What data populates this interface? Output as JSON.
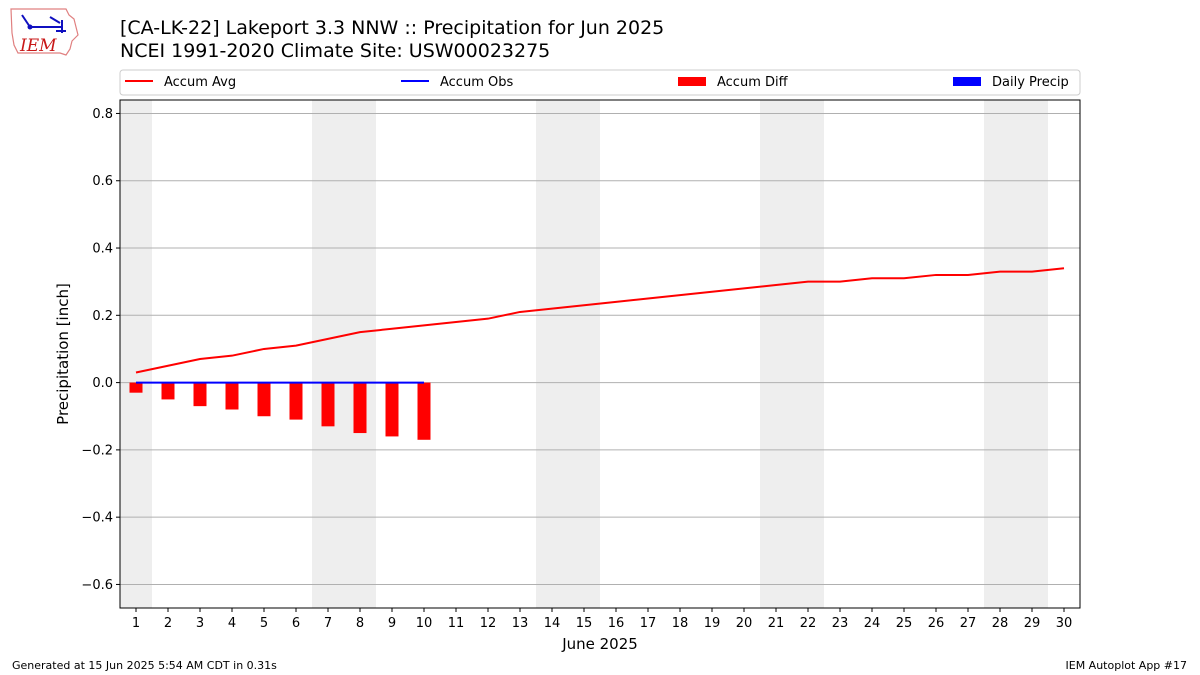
{
  "header": {
    "title_line1": "[CA-LK-22] Lakeport 3.3 NNW :: Precipitation for Jun 2025",
    "title_line2": "NCEI 1991-2020 Climate Site: USW00023275",
    "logo_text": "IEM"
  },
  "footer": {
    "left": "Generated at 15 Jun 2025 5:54 AM CDT in 0.31s",
    "right": "IEM Autoplot App #17"
  },
  "colors": {
    "accum_avg": "#ff0000",
    "accum_obs": "#0000ff",
    "accum_diff": "#ff0000",
    "daily_precip": "#0000ff",
    "weekend_shade": "#eeeeee",
    "grid": "#b0b0b0"
  },
  "chart_data": {
    "type": "line",
    "xlabel": "June 2025",
    "ylabel": "Precipitation [inch]",
    "ylim": [
      -0.67,
      0.84
    ],
    "xlim": [
      0.5,
      30.5
    ],
    "yticks": [
      -0.6,
      -0.4,
      -0.2,
      0.0,
      0.2,
      0.4,
      0.6,
      0.8
    ],
    "ytick_labels": [
      "−0.6",
      "−0.4",
      "−0.2",
      "0.0",
      "0.2",
      "0.4",
      "0.6",
      "0.8"
    ],
    "x": [
      1,
      2,
      3,
      4,
      5,
      6,
      7,
      8,
      9,
      10,
      11,
      12,
      13,
      14,
      15,
      16,
      17,
      18,
      19,
      20,
      21,
      22,
      23,
      24,
      25,
      26,
      27,
      28,
      29,
      30
    ],
    "xtick_labels": [
      "1",
      "2",
      "3",
      "4",
      "5",
      "6",
      "7",
      "8",
      "9",
      "10",
      "11",
      "12",
      "13",
      "14",
      "15",
      "16",
      "17",
      "18",
      "19",
      "20",
      "21",
      "22",
      "23",
      "24",
      "25",
      "26",
      "27",
      "28",
      "29",
      "30"
    ],
    "grid": "y",
    "legend_position": "top",
    "weekend_days": [
      1,
      7,
      8,
      14,
      15,
      21,
      22,
      28,
      29
    ],
    "series": [
      {
        "name": "Accum Avg",
        "type": "line",
        "x": [
          1,
          2,
          3,
          4,
          5,
          6,
          7,
          8,
          9,
          10,
          11,
          12,
          13,
          14,
          15,
          16,
          17,
          18,
          19,
          20,
          21,
          22,
          23,
          24,
          25,
          26,
          27,
          28,
          29,
          30
        ],
        "values": [
          0.03,
          0.05,
          0.07,
          0.08,
          0.1,
          0.11,
          0.13,
          0.15,
          0.16,
          0.17,
          0.18,
          0.19,
          0.21,
          0.22,
          0.23,
          0.24,
          0.25,
          0.26,
          0.27,
          0.28,
          0.29,
          0.3,
          0.3,
          0.31,
          0.31,
          0.32,
          0.32,
          0.33,
          0.33,
          0.34
        ]
      },
      {
        "name": "Accum Obs",
        "type": "line",
        "x": [
          1,
          2,
          3,
          4,
          5,
          6,
          7,
          8,
          9,
          10
        ],
        "values": [
          0,
          0,
          0,
          0,
          0,
          0,
          0,
          0,
          0,
          0
        ]
      },
      {
        "name": "Accum Diff",
        "type": "bar",
        "x": [
          1,
          2,
          3,
          4,
          5,
          6,
          7,
          8,
          9,
          10
        ],
        "values": [
          -0.03,
          -0.05,
          -0.07,
          -0.08,
          -0.1,
          -0.11,
          -0.13,
          -0.15,
          -0.16,
          -0.17
        ]
      },
      {
        "name": "Daily Precip",
        "type": "bar",
        "x": [
          1,
          2,
          3,
          4,
          5,
          6,
          7,
          8,
          9,
          10
        ],
        "values": [
          0,
          0,
          0,
          0,
          0,
          0,
          0,
          0,
          0,
          0
        ]
      }
    ]
  }
}
